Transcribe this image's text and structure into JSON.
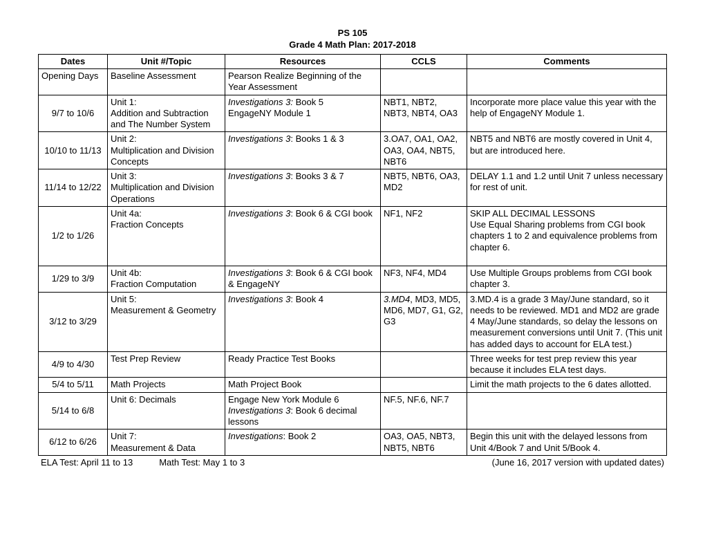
{
  "header": {
    "line1": "PS 105",
    "line2": "Grade 4 Math Plan: 2017-2018"
  },
  "columns": [
    "Dates",
    "Unit #/Topic",
    "Resources",
    "CCLS",
    "Comments"
  ],
  "rows": [
    {
      "dates": "Opening Days",
      "dates_align": "left",
      "unit": "Baseline Assessment",
      "resources_plain": "Pearson Realize Beginning of the Year Assessment",
      "ccls": "",
      "comments": ""
    },
    {
      "dates": "9/7 to 10/6",
      "unit_line1": "Unit 1:",
      "unit_line2": "Addition and Subtraction and The Number System",
      "resources_italic": "Investigations 3:",
      "resources_after": " Book 5",
      "resources_line2": "EngageNY Module 1",
      "ccls": "NBT1, NBT2, NBT3, NBT4, OA3",
      "comments": "Incorporate more place value this year with the help of EngageNY Module 1."
    },
    {
      "dates": "10/10 to 11/13",
      "unit_line1": "Unit 2:",
      "unit_line2": "Multiplication and Division Concepts",
      "resources_italic": "Investigations 3",
      "resources_after": ": Books 1 & 3",
      "ccls": "3.OA7, OA1, OA2, OA3, OA4, NBT5, NBT6",
      "comments": "NBT5 and NBT6 are mostly covered in Unit 4, but are introduced here."
    },
    {
      "dates": "11/14 to 12/22",
      "unit_line1": "Unit 3:",
      "unit_line2": "Multiplication and Division Operations",
      "resources_italic": "Investigations 3",
      "resources_after": ": Books 3 & 7",
      "ccls": "NBT5, NBT6, OA3, MD2",
      "comments": "DELAY 1.1 and 1.2 until Unit 7 unless necessary for rest of unit."
    },
    {
      "dates": "1/2 to 1/26",
      "unit_line1": "Unit 4a:",
      "unit_line2": "Fraction Concepts",
      "resources_italic": "Investigations 3",
      "resources_after": ": Book 6 & CGI book",
      "ccls": "NF1, NF2",
      "comments": "SKIP ALL DECIMAL LESSONS\nUse Equal Sharing problems from CGI book chapters 1 to 2 and equivalence problems from chapter 6.\n ",
      "comments_has_break": true
    },
    {
      "dates": "1/29 to 3/9",
      "unit_line1": "Unit 4b:",
      "unit_line2": "Fraction Computation",
      "resources_italic": "Investigations 3",
      "resources_after": ": Book 6 & CGI book & EngageNY",
      "ccls": "NF3, NF4, MD4",
      "comments": "Use Multiple Groups problems from CGI book chapter 3."
    },
    {
      "dates": "3/12 to 3/29",
      "unit_line1": "Unit 5:",
      "unit_line2": "Measurement & Geometry",
      "resources_italic": "Investigations 3",
      "resources_after": ": Book 4",
      "ccls_italic": "3.MD4",
      "ccls_after": ", MD3, MD5, MD6, MD7, G1, G2, G3",
      "comments": "3.MD.4 is a grade 3 May/June standard, so it needs to be reviewed. MD1 and MD2 are grade 4 May/June standards, so delay the lessons on measurement conversions until Unit 7. (This unit has added days to account for ELA test.)"
    },
    {
      "dates": "4/9 to 4/30",
      "unit": "Test Prep Review",
      "resources_plain": "Ready Practice Test Books",
      "ccls": "",
      "comments": "Three weeks for test prep review this year because it includes ELA test days."
    },
    {
      "dates": "5/4 to 5/11",
      "unit": "Math Projects",
      "resources_plain": "Math Project Book",
      "ccls": "",
      "comments": "Limit the math projects to the 6 dates allotted."
    },
    {
      "dates": "5/14 to 6/8",
      "unit": "Unit 6: Decimals",
      "resources_multi": [
        {
          "plain": "Engage New York Module 6"
        },
        {
          "italic": "Investigations 3",
          "after": ": Book 6 decimal lessons"
        }
      ],
      "ccls": "NF.5, NF.6, NF.7",
      "comments": ""
    },
    {
      "dates": "6/12 to 6/26",
      "unit_line1": "Unit 7:",
      "unit_line2": "Measurement & Data",
      "resources_italic": "Investigations",
      "resources_after": ": Book 2",
      "ccls": "OA3, OA5, NBT3, NBT5, NBT6",
      "comments": "Begin this unit with the delayed lessons from Unit 4/Book 7 and Unit 5/Book 4."
    }
  ],
  "footer": {
    "ela": "ELA Test: April 11 to 13",
    "math": "Math Test: May 1 to 3",
    "version": "(June 16, 2017  version with updated dates)"
  }
}
